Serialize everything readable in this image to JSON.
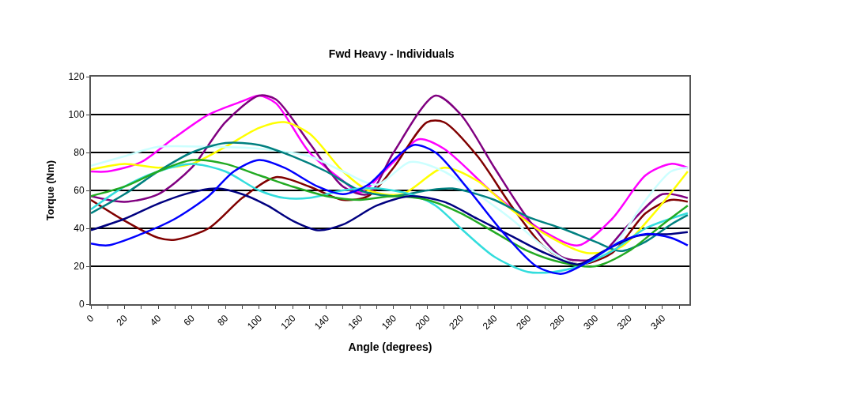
{
  "chart_data": {
    "type": "line",
    "title": "Fwd Heavy - Individuals",
    "xlabel": "Angle (degrees)",
    "ylabel": "Torque (Nm)",
    "xlim": [
      0,
      356
    ],
    "xticks": [
      0,
      {
        "value": 10,
        "label": null
      },
      20,
      {
        "value": 30,
        "label": null
      },
      40,
      {
        "value": 50,
        "label": null
      },
      60,
      {
        "value": 70,
        "label": null
      },
      80,
      {
        "value": 90,
        "label": null
      },
      100,
      {
        "value": 110,
        "label": null
      },
      120,
      {
        "value": 130,
        "label": null
      },
      140,
      {
        "value": 150,
        "label": null
      },
      160,
      {
        "value": 170,
        "label": null
      },
      180,
      {
        "value": 190,
        "label": null
      },
      200,
      {
        "value": 210,
        "label": null
      },
      220,
      {
        "value": 230,
        "label": null
      },
      240,
      {
        "value": 250,
        "label": null
      },
      260,
      {
        "value": 270,
        "label": null
      },
      280,
      {
        "value": 290,
        "label": null
      },
      300,
      {
        "value": 310,
        "label": null
      },
      320,
      {
        "value": 330,
        "label": null
      },
      340,
      {
        "value": 350,
        "label": null
      }
    ],
    "ylim": [
      0,
      120
    ],
    "yticks": [
      0,
      20,
      40,
      60,
      80,
      100,
      120
    ],
    "grid": "y",
    "marker": "none",
    "line_style": "solid",
    "series": [
      {
        "color": "#ff00ff",
        "x": [
          0,
          10,
          30,
          50,
          70,
          90,
          100,
          110,
          130,
          150,
          160,
          180,
          195,
          210,
          240,
          270,
          290,
          310,
          330,
          345,
          355
        ],
        "values": [
          70,
          70,
          75,
          88,
          100,
          107,
          110,
          106,
          80,
          65,
          59,
          75,
          87,
          82,
          58,
          38,
          31,
          45,
          68,
          74,
          72
        ]
      },
      {
        "color": "#800080",
        "x": [
          0,
          20,
          40,
          60,
          80,
          100,
          110,
          130,
          150,
          165,
          180,
          205,
          220,
          240,
          260,
          280,
          300,
          320,
          340,
          355
        ],
        "values": [
          57,
          54,
          58,
          72,
          96,
          110,
          108,
          85,
          62,
          58,
          80,
          110,
          100,
          72,
          45,
          25,
          24,
          42,
          58,
          56
        ]
      },
      {
        "color": "#800000",
        "x": [
          0,
          20,
          40,
          50,
          70,
          90,
          110,
          130,
          150,
          165,
          180,
          200,
          210,
          230,
          250,
          270,
          290,
          310,
          330,
          345,
          355
        ],
        "values": [
          55,
          44,
          35,
          34,
          40,
          56,
          67,
          62,
          55,
          57,
          72,
          96,
          96,
          78,
          52,
          30,
          21,
          27,
          48,
          55,
          54
        ]
      },
      {
        "color": "#ffff00",
        "x": [
          0,
          20,
          40,
          60,
          80,
          100,
          115,
          130,
          150,
          165,
          185,
          210,
          230,
          250,
          270,
          295,
          315,
          335,
          355
        ],
        "values": [
          71,
          74,
          72,
          74,
          83,
          93,
          96,
          90,
          70,
          60,
          58,
          72,
          65,
          50,
          37,
          27,
          30,
          48,
          70
        ]
      },
      {
        "color": "#ccffff",
        "x": [
          0,
          20,
          40,
          70,
          100,
          130,
          150,
          170,
          190,
          210,
          230,
          250,
          270,
          290,
          310,
          330,
          345,
          355
        ],
        "values": [
          73,
          78,
          83,
          83,
          82,
          78,
          70,
          63,
          75,
          70,
          58,
          45,
          30,
          21,
          30,
          55,
          70,
          72
        ]
      },
      {
        "color": "#008080",
        "x": [
          0,
          20,
          40,
          60,
          80,
          100,
          120,
          140,
          160,
          180,
          200,
          215,
          240,
          260,
          280,
          300,
          315,
          330,
          345,
          355
        ],
        "values": [
          48,
          58,
          70,
          80,
          85,
          84,
          78,
          70,
          60,
          57,
          60,
          61,
          55,
          46,
          40,
          33,
          28,
          33,
          42,
          47
        ]
      },
      {
        "color": "#33dddd",
        "x": [
          0,
          20,
          40,
          60,
          80,
          100,
          115,
          130,
          150,
          170,
          190,
          205,
          220,
          240,
          260,
          275,
          290,
          310,
          330,
          355
        ],
        "values": [
          50,
          62,
          70,
          74,
          70,
          60,
          56,
          56,
          60,
          61,
          58,
          52,
          40,
          25,
          17,
          17,
          20,
          28,
          40,
          48
        ]
      },
      {
        "color": "#22aa22",
        "x": [
          0,
          20,
          40,
          60,
          80,
          100,
          120,
          140,
          160,
          180,
          200,
          220,
          240,
          260,
          280,
          300,
          320,
          340,
          355
        ],
        "values": [
          57,
          62,
          70,
          76,
          74,
          68,
          62,
          57,
          55,
          57,
          55,
          48,
          38,
          28,
          22,
          20,
          28,
          42,
          52
        ]
      },
      {
        "color": "#000080",
        "x": [
          0,
          20,
          40,
          60,
          75,
          90,
          105,
          120,
          135,
          150,
          170,
          190,
          210,
          230,
          250,
          270,
          290,
          305,
          325,
          345,
          355
        ],
        "values": [
          39,
          45,
          53,
          59,
          61,
          58,
          52,
          44,
          39,
          42,
          52,
          57,
          54,
          45,
          36,
          27,
          21,
          28,
          36,
          37,
          38
        ]
      },
      {
        "color": "#0000ff",
        "x": [
          0,
          10,
          30,
          50,
          70,
          85,
          100,
          115,
          135,
          150,
          165,
          180,
          192,
          205,
          225,
          245,
          265,
          280,
          295,
          315,
          330,
          345,
          355
        ],
        "values": [
          32,
          31,
          37,
          45,
          57,
          70,
          76,
          72,
          62,
          58,
          63,
          76,
          84,
          80,
          60,
          38,
          20,
          16,
          22,
          33,
          37,
          35,
          31
        ]
      }
    ]
  }
}
